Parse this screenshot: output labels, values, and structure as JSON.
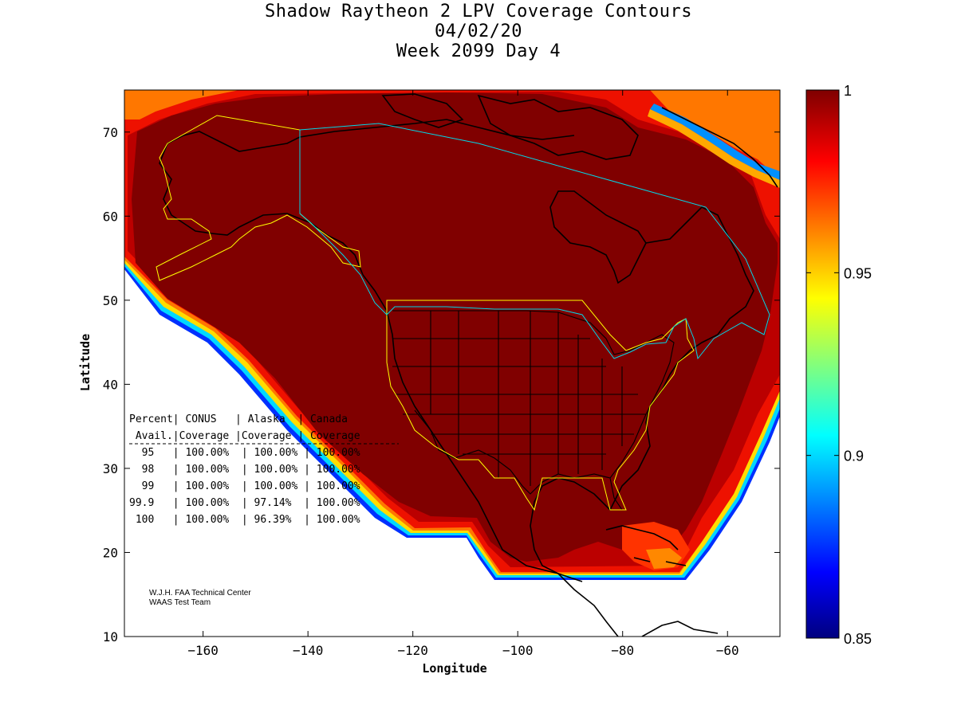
{
  "titles": {
    "line1": "Shadow Raytheon 2 LPV Coverage Contours",
    "line2": "04/02/20",
    "line3": "Week 2099 Day 4"
  },
  "axes": {
    "xlabel": "Longitude",
    "ylabel": "Latitude",
    "xlim": [
      -175,
      -50
    ],
    "ylim": [
      10,
      75
    ],
    "xticks": [
      -160,
      -140,
      -120,
      -100,
      -80,
      -60
    ],
    "yticks": [
      10,
      20,
      30,
      40,
      50,
      60,
      70
    ]
  },
  "colorbar": {
    "range": [
      0.85,
      1
    ],
    "ticks": [
      "1",
      "0.95",
      "0.9",
      "0.85"
    ]
  },
  "table": {
    "header1": "Percent| CONUS   | Alaska  | Canada",
    "header2": " Avail.|Coverage |Coverage | Coverage",
    "rows": [
      "  95   | 100.00%  | 100.00% | 100.00%",
      "  98   | 100.00%  | 100.00% | 100.00%",
      "  99   | 100.00%  | 100.00% | 100.00%",
      "99.9   | 100.00%  | 97.14%  | 100.00%",
      " 100   | 100.00%  | 96.39%  | 100.00%"
    ]
  },
  "credits": {
    "line1": "W.J.H. FAA Technical Center",
    "line2": "WAAS Test Team"
  },
  "colors": {
    "core": "#800000",
    "service_boundary_us": "#ffff00",
    "service_boundary_canada": "#00c8d8",
    "coast": "#000000"
  }
}
